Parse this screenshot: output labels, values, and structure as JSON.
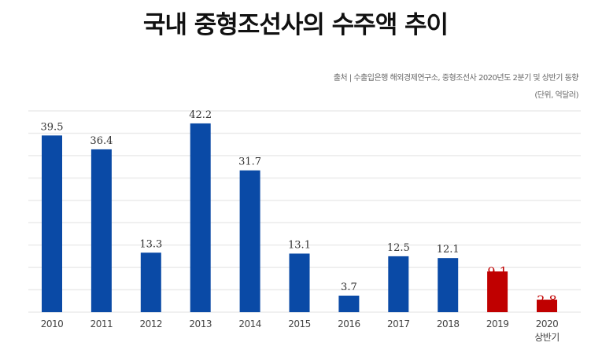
{
  "chart_data": {
    "type": "bar",
    "title": "국내 중형조선사의 수주액 추이",
    "source": "출처 | 수출입은행 해외경제연구소, 중형조선사 2020년도 2분기 및 상반기 동향",
    "unit": "(단위, 억달러)",
    "categories": [
      "2010",
      "2011",
      "2012",
      "2013",
      "2014",
      "2015",
      "2016",
      "2017",
      "2018",
      "2019",
      "2020 상반기"
    ],
    "values": [
      39.5,
      36.4,
      13.3,
      42.2,
      31.7,
      13.1,
      3.7,
      12.5,
      12.1,
      9.1,
      2.8
    ],
    "value_labels": [
      "39.5",
      "36.4",
      "13.3",
      "42.2",
      "31.7",
      "13.1",
      "3.7",
      "12.5",
      "12.1",
      "9.1",
      "2.8"
    ],
    "highlight": [
      false,
      false,
      false,
      false,
      false,
      false,
      false,
      false,
      false,
      true,
      true
    ],
    "ylim": [
      0,
      45
    ],
    "grid": true,
    "grid_step": 5,
    "colors": {
      "bar": "#0a4aa6",
      "highlight": "#c00000",
      "grid": "#ebebeb"
    }
  }
}
